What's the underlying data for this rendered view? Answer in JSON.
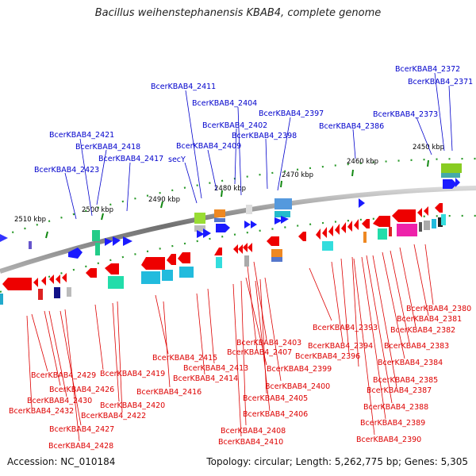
{
  "title": "Bacillus weihenstephanensis KBAB4, complete genome",
  "footer": {
    "accession": "Accession: NC_010184",
    "topology": "Topology: circular; Length: 5,262,775 bp; Genes: 5,305"
  },
  "scale_ticks": [
    "2510 kbp",
    "2500 kbp",
    "2490 kbp",
    "2480 kbp",
    "2470 kbp",
    "2460 kbp",
    "2450 kbp"
  ],
  "forward_labels": [
    "BcerKBAB4_2372",
    "BcerKBAB4_2371",
    "BcerKBAB4_2411",
    "BcerKBAB4_2404",
    "BcerKBAB4_2397",
    "BcerKBAB4_2373",
    "BcerKBAB4_2402",
    "BcerKBAB4_2386",
    "BcerKBAB4_2421",
    "BcerKBAB4_2398",
    "BcerKBAB4_2418",
    "BcerKBAB4_2409",
    "BcerKBAB4_2417",
    "secY",
    "BcerKBAB4_2423"
  ],
  "reverse_labels": [
    "BcerKBAB4_2380",
    "BcerKBAB4_2381",
    "BcerKBAB4_2393",
    "BcerKBAB4_2382",
    "BcerKBAB4_2403",
    "BcerKBAB4_2394",
    "BcerKBAB4_2383",
    "BcerKBAB4_2407",
    "BcerKBAB4_2396",
    "BcerKBAB4_2415",
    "BcerKBAB4_2384",
    "BcerKBAB4_2413",
    "BcerKBAB4_2399",
    "BcerKBAB4_2385",
    "BcerKBAB4_2429",
    "BcerKBAB4_2419",
    "BcerKBAB4_2414",
    "BcerKBAB4_2400",
    "BcerKBAB4_2387",
    "BcerKBAB4_2426",
    "BcerKBAB4_2416",
    "BcerKBAB4_2405",
    "BcerKBAB4_2430",
    "BcerKBAB4_2420",
    "BcerKBAB4_2388",
    "BcerKBAB4_2432",
    "BcerKBAB4_2406",
    "BcerKBAB4_2422",
    "BcerKBAB4_2389",
    "BcerKBAB4_2427",
    "BcerKBAB4_2408",
    "BcerKBAB4_2390",
    "BcerKBAB4_2410",
    "BcerKBAB4_2428"
  ],
  "colors": {
    "forward": "#0000cc",
    "reverse": "#ee0000",
    "backbone": "#808080",
    "tick": "#118811"
  }
}
